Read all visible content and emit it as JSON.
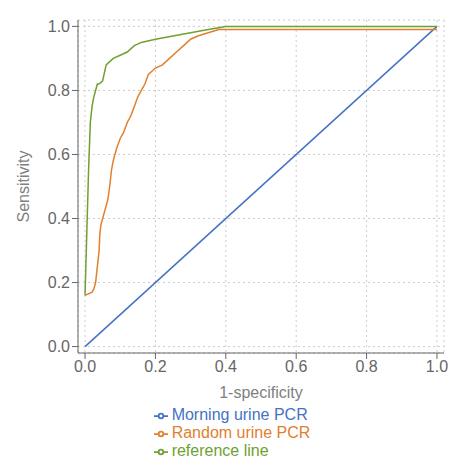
{
  "chart_data": {
    "type": "line",
    "xlabel": "1-specificity",
    "ylabel": "Sensitivity",
    "xlim": [
      -0.02,
      1.02
    ],
    "ylim": [
      -0.02,
      1.02
    ],
    "xticks": [
      {
        "value": 0.0,
        "label": "0.0"
      },
      0.2,
      0.4,
      0.6,
      0.8,
      {
        "value": 1.0,
        "label": "1.0"
      }
    ],
    "yticks": [
      {
        "value": 0.0,
        "label": "0.0"
      },
      0.2,
      0.4,
      0.6,
      0.8,
      {
        "value": 1.0,
        "label": "1.0"
      }
    ],
    "grid": true,
    "legend": "bottom",
    "series": [
      {
        "name": "Morning urine PCR",
        "color": "#4472C4",
        "x": [
          0.0,
          1.0
        ],
        "values": [
          0.0,
          1.0
        ]
      },
      {
        "name": "Random urine PCR",
        "color": "#E08030",
        "x": [
          0.0,
          0.02,
          0.025,
          0.03,
          0.035,
          0.04,
          0.042,
          0.045,
          0.05,
          0.055,
          0.06,
          0.065,
          0.07,
          0.075,
          0.08,
          0.09,
          0.1,
          0.11,
          0.12,
          0.13,
          0.14,
          0.15,
          0.16,
          0.17,
          0.18,
          0.2,
          0.22,
          0.24,
          0.26,
          0.28,
          0.3,
          0.32,
          0.35,
          0.38,
          0.4,
          0.42,
          1.0
        ],
        "values": [
          0.16,
          0.17,
          0.18,
          0.2,
          0.25,
          0.3,
          0.35,
          0.38,
          0.4,
          0.42,
          0.44,
          0.46,
          0.5,
          0.55,
          0.58,
          0.62,
          0.65,
          0.67,
          0.7,
          0.72,
          0.75,
          0.78,
          0.8,
          0.82,
          0.85,
          0.87,
          0.88,
          0.9,
          0.92,
          0.94,
          0.96,
          0.97,
          0.98,
          0.99,
          0.99,
          0.99,
          0.99
        ]
      },
      {
        "name": "reference line",
        "color": "#70A030",
        "x": [
          0.0,
          0.01,
          0.015,
          0.02,
          0.025,
          0.03,
          0.035,
          0.04,
          0.05,
          0.06,
          0.08,
          0.1,
          0.12,
          0.14,
          0.16,
          0.2,
          0.25,
          0.3,
          0.35,
          0.4,
          1.0
        ],
        "values": [
          0.16,
          0.55,
          0.7,
          0.75,
          0.78,
          0.8,
          0.82,
          0.82,
          0.83,
          0.88,
          0.9,
          0.91,
          0.92,
          0.94,
          0.95,
          0.96,
          0.97,
          0.98,
          0.99,
          1.0,
          1.0
        ]
      }
    ]
  }
}
